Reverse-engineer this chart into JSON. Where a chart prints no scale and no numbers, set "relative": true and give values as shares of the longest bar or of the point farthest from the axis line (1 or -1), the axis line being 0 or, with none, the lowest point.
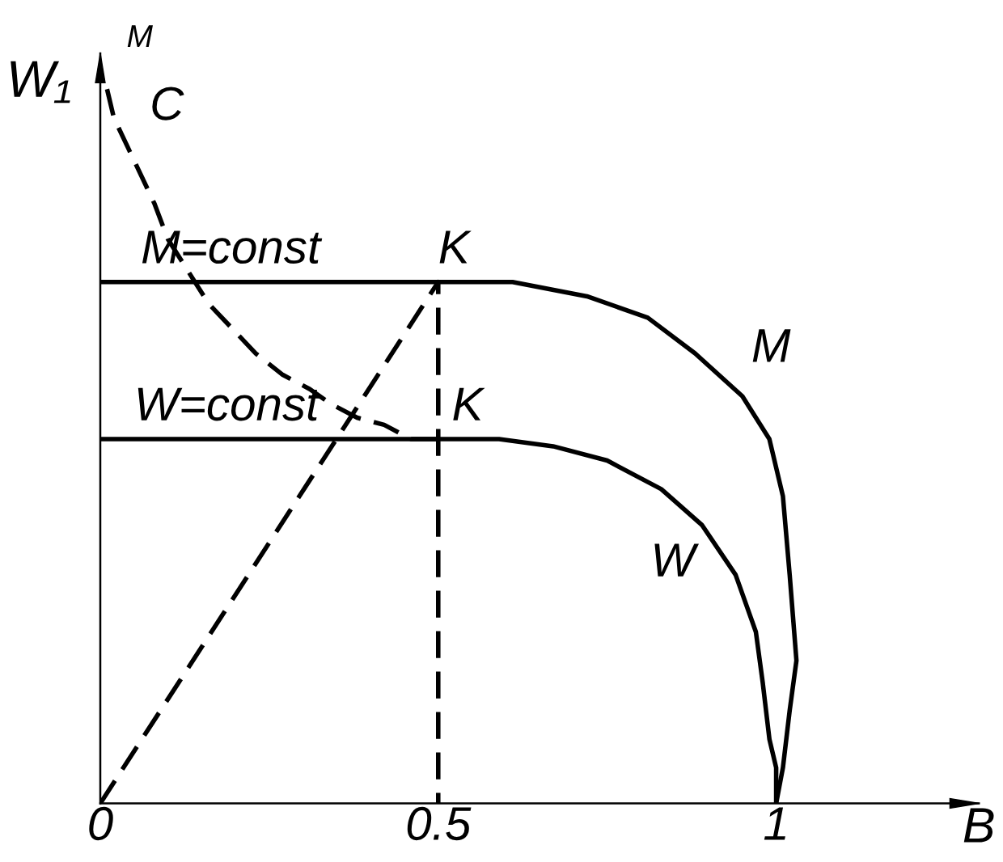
{
  "chart_data": {
    "type": "line",
    "relative": true,
    "xlabel": "B",
    "ylabel": "W₁",
    "xlim": [
      0,
      1.3
    ],
    "xticks": [
      0,
      0.5,
      1
    ],
    "tick_labels": "x",
    "series": [
      {
        "name": "M",
        "color": "#000000",
        "line_style": "solid",
        "x": [
          0,
          0.5,
          0.61,
          0.72,
          0.81,
          0.88,
          0.95,
          0.99,
          1.01,
          1.02,
          1.03,
          1.02,
          1.01,
          1.0
        ],
        "values": [
          0.73,
          0.73,
          0.73,
          0.71,
          0.68,
          0.63,
          0.57,
          0.51,
          0.43,
          0.32,
          0.2,
          0.13,
          0.05,
          0
        ]
      },
      {
        "name": "W",
        "color": "#000000",
        "line_style": "solid",
        "x": [
          0,
          0.5,
          0.59,
          0.67,
          0.75,
          0.83,
          0.89,
          0.94,
          0.97,
          0.98,
          0.99,
          1.0,
          1.0
        ],
        "values": [
          0.51,
          0.51,
          0.51,
          0.5,
          0.48,
          0.44,
          0.39,
          0.32,
          0.24,
          0.17,
          0.09,
          0.05,
          0
        ]
      },
      {
        "name": "C",
        "color": "#000000",
        "line_style": "dashed",
        "x": [
          0.01,
          0.02,
          0.04,
          0.08,
          0.1,
          0.14,
          0.16,
          0.19,
          0.23,
          0.27,
          0.31,
          0.34,
          0.38,
          0.42,
          0.46,
          0.5
        ],
        "values": [
          1.0,
          0.96,
          0.92,
          0.84,
          0.79,
          0.73,
          0.7,
          0.67,
          0.63,
          0.6,
          0.58,
          0.56,
          0.54,
          0.53,
          0.51,
          0.51
        ]
      },
      {
        "color": "#000000",
        "line_style": "dashed",
        "x": [
          0,
          0.5,
          0.5
        ],
        "values": [
          0,
          0.73,
          0
        ]
      }
    ],
    "annotations": [
      {
        "text": "M=const",
        "x": 0.06,
        "y": 0.73
      },
      {
        "text": "K",
        "x": 0.5,
        "y": 0.73
      },
      {
        "text": "W=const",
        "x": 0.05,
        "y": 0.51
      },
      {
        "text": "K",
        "x": 0.52,
        "y": 0.51
      },
      "M"
    ]
  }
}
